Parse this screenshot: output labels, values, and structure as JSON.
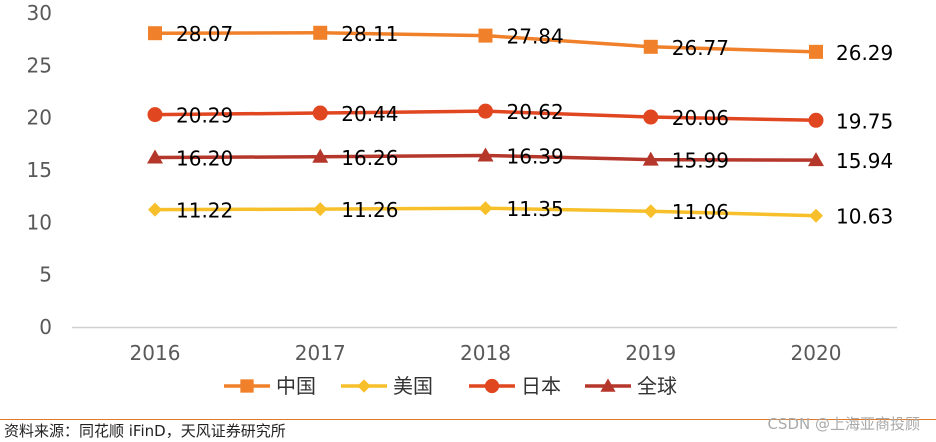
{
  "chart_data": {
    "type": "line",
    "categories": [
      "2016",
      "2017",
      "2018",
      "2019",
      "2020"
    ],
    "ylim": [
      0,
      30
    ],
    "yticks": [
      0,
      5,
      10,
      15,
      20,
      25,
      30
    ],
    "grid": false,
    "legend_position": "bottom",
    "series": [
      {
        "name": "中国",
        "values": [
          28.07,
          28.11,
          27.84,
          26.77,
          26.29
        ],
        "labels": [
          "28.07",
          "28.11",
          "27.84",
          "26.77",
          "26.29"
        ],
        "color": "#f0812a",
        "marker": "square"
      },
      {
        "name": "日本",
        "values": [
          20.29,
          20.44,
          20.62,
          20.06,
          19.75
        ],
        "labels": [
          "20.29",
          "20.44",
          "20.62",
          "20.06",
          "19.75"
        ],
        "color": "#e0461f",
        "marker": "circle"
      },
      {
        "name": "全球",
        "values": [
          16.2,
          16.26,
          16.39,
          15.99,
          15.94
        ],
        "labels": [
          "16.20",
          "16.26",
          "16.39",
          "15.99",
          "15.94"
        ],
        "color": "#b5372b",
        "marker": "triangle"
      },
      {
        "name": "美国",
        "values": [
          11.22,
          11.26,
          11.35,
          11.06,
          10.63
        ],
        "labels": [
          "11.22",
          "11.26",
          "11.35",
          "11.06",
          "10.63"
        ],
        "color": "#f7bf2a",
        "marker": "diamond"
      }
    ],
    "legend_order": [
      "中国",
      "美国",
      "日本",
      "全球"
    ]
  },
  "footer": {
    "source": "资料来源：同花顺 iFinD，天风证券研究所",
    "watermark": "CSDN @上海亚商投顾"
  },
  "colors": {
    "axis": "#d0d0d0",
    "tick_text": "#595959",
    "label_text": "#000000"
  }
}
